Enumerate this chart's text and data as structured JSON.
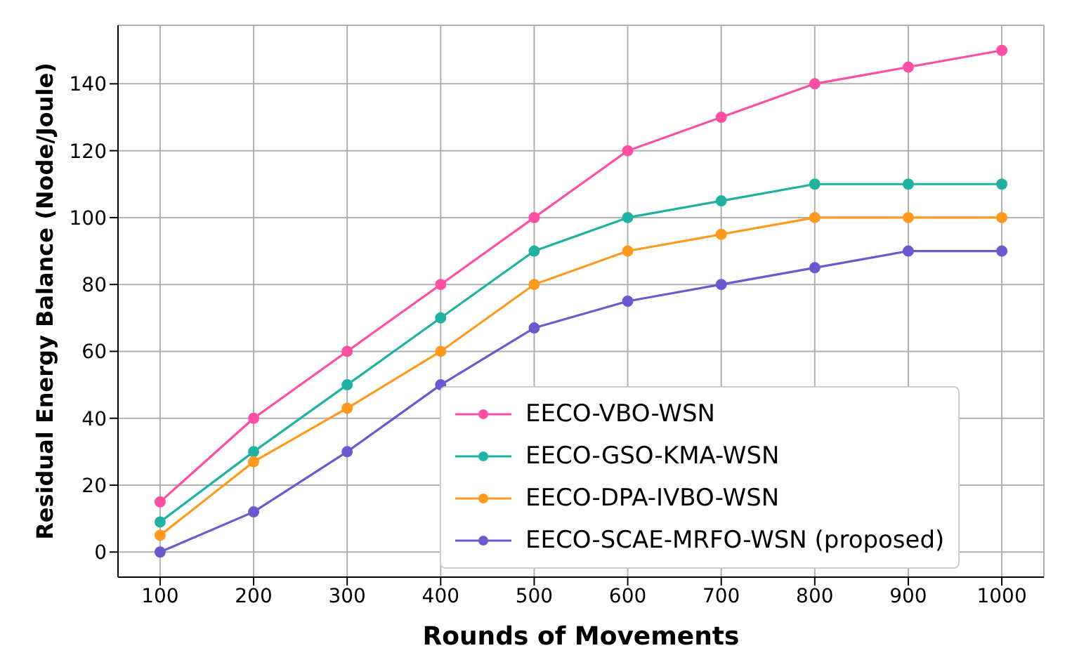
{
  "chart_data": {
    "type": "line",
    "xlabel": "Rounds of Movements",
    "ylabel": "Residual Energy Balance (Node/Joule)",
    "x": [
      100,
      200,
      300,
      400,
      500,
      600,
      700,
      800,
      900,
      1000
    ],
    "series": [
      {
        "name": "EECO-VBO-WSN",
        "color": "#ff4fa3",
        "values": [
          15,
          40,
          60,
          80,
          100,
          120,
          130,
          140,
          145,
          150
        ]
      },
      {
        "name": "EECO-GSO-KMA-WSN",
        "color": "#20b2a0",
        "values": [
          9,
          30,
          50,
          70,
          90,
          100,
          105,
          110,
          110,
          110
        ]
      },
      {
        "name": "EECO-DPA-IVBO-WSN",
        "color": "#ff9a1f",
        "values": [
          5,
          27,
          43,
          60,
          80,
          90,
          95,
          100,
          100,
          100
        ]
      },
      {
        "name": "EECO-SCAE-MRFO-WSN (proposed)",
        "color": "#6a5acd",
        "values": [
          0,
          12,
          30,
          50,
          67,
          75,
          80,
          85,
          90,
          90
        ]
      }
    ],
    "xlim": [
      55,
      1045
    ],
    "xticks": [
      100,
      200,
      300,
      400,
      500,
      600,
      700,
      800,
      900,
      1000
    ],
    "ylim": [
      -7.5,
      157.5
    ],
    "yticks": [
      0,
      20,
      40,
      60,
      80,
      100,
      120,
      140
    ],
    "grid": true,
    "legend": "bottom right",
    "marker": "circle",
    "line_style": "solid"
  }
}
